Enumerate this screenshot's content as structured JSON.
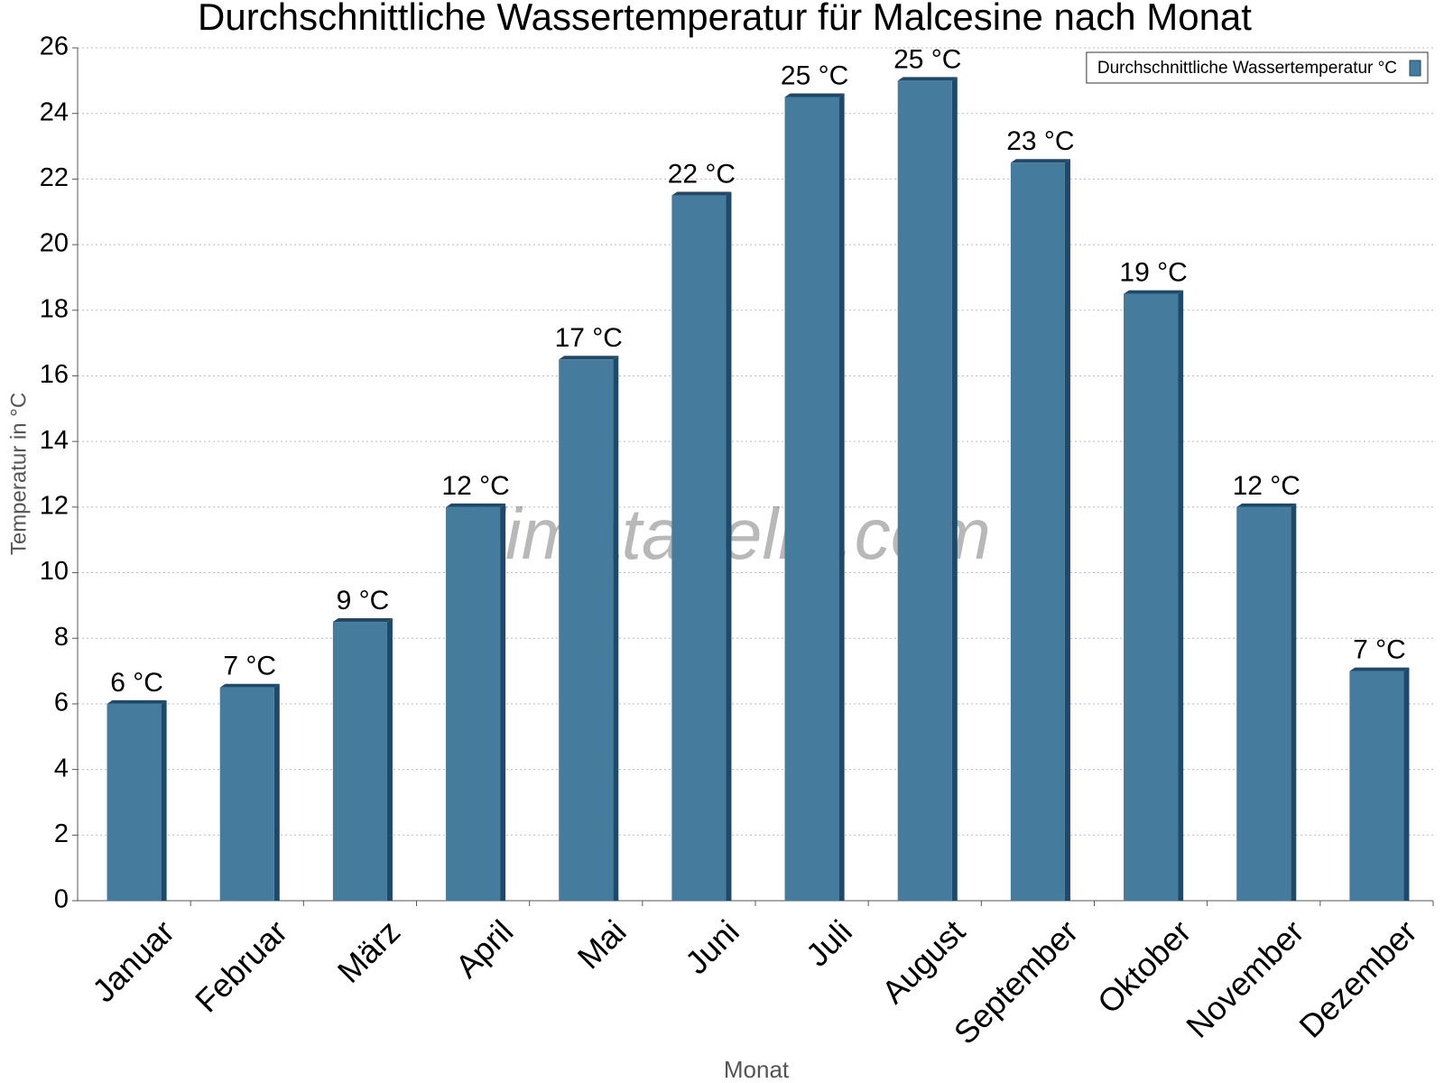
{
  "chart_data": {
    "type": "bar",
    "title": "Durchschnittliche Wassertemperatur für Malcesine nach Monat",
    "x_label": "Monat",
    "y_label": "Temperatur in °C",
    "watermark": "klimatabelle.com",
    "categories": [
      "Januar",
      "Februar",
      "März",
      "April",
      "Mai",
      "Juni",
      "Juli",
      "August",
      "September",
      "Oktober",
      "November",
      "Dezember"
    ],
    "series": [
      {
        "name": "Durchschnittliche Wassertemperatur °C",
        "color": "#457b9d",
        "values": [
          6,
          6.5,
          8.5,
          12,
          16.5,
          21.5,
          24.5,
          25,
          22.5,
          18.5,
          12,
          7
        ],
        "value_labels": [
          "6 °C",
          "7 °C",
          "9 °C",
          "12 °C",
          "17 °C",
          "22 °C",
          "25 °C",
          "25 °C",
          "23 °C",
          "19 °C",
          "12 °C",
          "7 °C"
        ]
      }
    ],
    "ylim": [
      0,
      26
    ],
    "yticks": [
      0,
      2,
      4,
      6,
      8,
      10,
      12,
      14,
      16,
      18,
      20,
      22,
      24,
      26
    ],
    "grid": true,
    "legend": "top-right"
  }
}
